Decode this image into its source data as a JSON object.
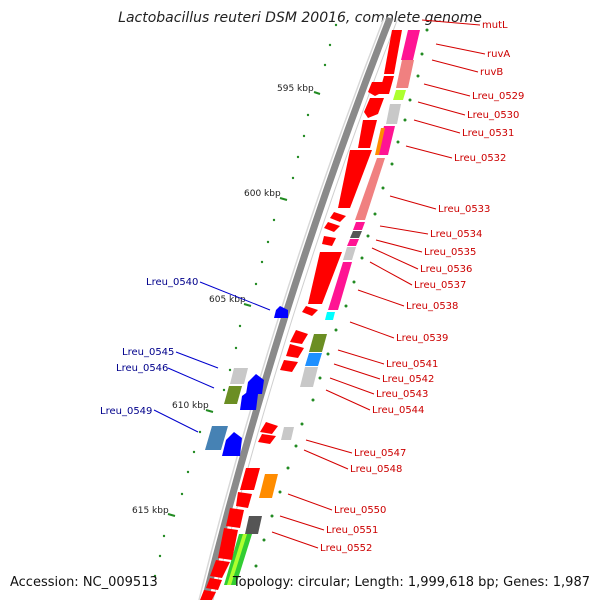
{
  "title": "Lactobacillus reuteri DSM 20016, complete genome",
  "accession": "Accession: NC_009513",
  "topology": "Topology: circular; Length: 1,999,618 bp; Genes: 1,987",
  "scale_ticks": [
    "595 kbp",
    "600 kbp",
    "605 kbp",
    "610 kbp",
    "615 kbp"
  ],
  "right_labels": [
    "mutL",
    "ruvA",
    "ruvB",
    "Lreu_0529",
    "Lreu_0530",
    "Lreu_0531",
    "Lreu_0532",
    "Lreu_0533",
    "Lreu_0534",
    "Lreu_0535",
    "Lreu_0536",
    "Lreu_0537",
    "Lreu_0538",
    "Lreu_0539",
    "Lreu_0541",
    "Lreu_0542",
    "Lreu_0543",
    "Lreu_0544",
    "Lreu_0547",
    "Lreu_0548",
    "Lreu_0550",
    "Lreu_0551",
    "Lreu_0552"
  ],
  "left_labels": [
    "Lreu_0540",
    "Lreu_0545",
    "Lreu_0546",
    "Lreu_0549"
  ],
  "colors": {
    "forward_strand": "#ff0000",
    "reverse_strand": "#0000ff",
    "tick": "#228b22",
    "backbone": "#808080"
  }
}
